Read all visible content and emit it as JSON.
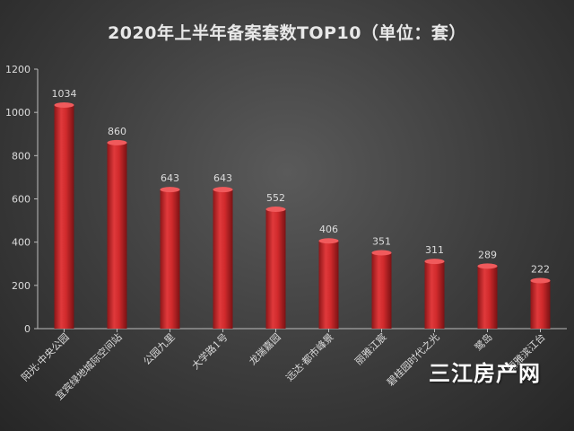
{
  "chart_data": {
    "type": "bar",
    "title": "2020年上半年备案套数TOP10（单位：套）",
    "categories": [
      "阳光·中央公园",
      "宜宾绿地城际空间站",
      "公园九里",
      "大学路1号",
      "龙瑞嘉园",
      "远达·都市峰景",
      "丽雅江宸",
      "碧桂园时代之光",
      "鹭岛",
      "丽雅滨江台"
    ],
    "values": [
      1034,
      860,
      643,
      643,
      552,
      406,
      351,
      311,
      289,
      222
    ],
    "ylim": [
      0,
      1200
    ],
    "yticks": [
      0,
      200,
      400,
      600,
      800,
      1000,
      1200
    ],
    "xlabel": "",
    "ylabel": "",
    "grid": false,
    "colors": {
      "bar": "#c8282a",
      "bar_light": "#f06a6a",
      "bar_dark": "#7a1214",
      "axis": "#bdbdbd",
      "text": "#dcdcdc"
    }
  },
  "watermark": "三江房产网"
}
